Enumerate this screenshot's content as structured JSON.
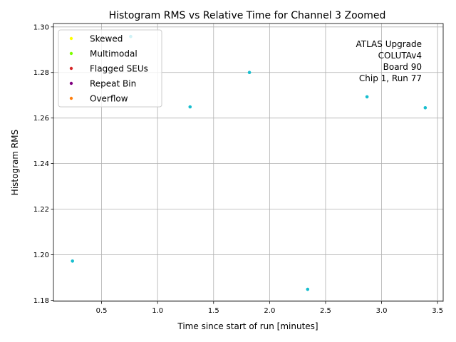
{
  "chart_data": {
    "type": "scatter",
    "title": "Histogram RMS vs Relative Time for Channel 3 Zoomed",
    "xlabel": "Time since start of run [minutes]",
    "ylabel": "Histogram RMS",
    "xlim": [
      0.07,
      3.55
    ],
    "ylim": [
      1.1795,
      1.3015
    ],
    "xticks": [
      0.5,
      1.0,
      1.5,
      2.0,
      2.5,
      3.0,
      3.5
    ],
    "xtick_labels": [
      "0.5",
      "1.0",
      "1.5",
      "2.0",
      "2.5",
      "3.0",
      "3.5"
    ],
    "yticks": [
      1.18,
      1.2,
      1.22,
      1.24,
      1.26,
      1.28,
      1.3
    ],
    "ytick_labels": [
      "1.18",
      "1.20",
      "1.22",
      "1.24",
      "1.26",
      "1.28",
      "1.30"
    ],
    "grid": true,
    "legend_position": "top-left",
    "series": [
      {
        "color": "#17becf",
        "x": [
          0.24,
          0.76,
          1.29,
          1.82,
          2.34,
          2.87,
          3.39
        ],
        "y": [
          1.1972,
          1.2958,
          1.2649,
          1.28,
          1.1848,
          1.2693,
          1.2645
        ]
      }
    ],
    "legend": [
      {
        "label": "Skewed",
        "color": "#ffff00"
      },
      {
        "label": "Multimodal",
        "color": "#7fff00"
      },
      {
        "label": "Flagged SEUs",
        "color": "#d62728"
      },
      {
        "label": "Repeat Bin",
        "color": "#800080"
      },
      {
        "label": "Overflow",
        "color": "#ff7f0e"
      }
    ],
    "annotation": [
      "ATLAS Upgrade",
      "COLUTAv4",
      "Board 90",
      "Chip 1, Run 77"
    ]
  }
}
